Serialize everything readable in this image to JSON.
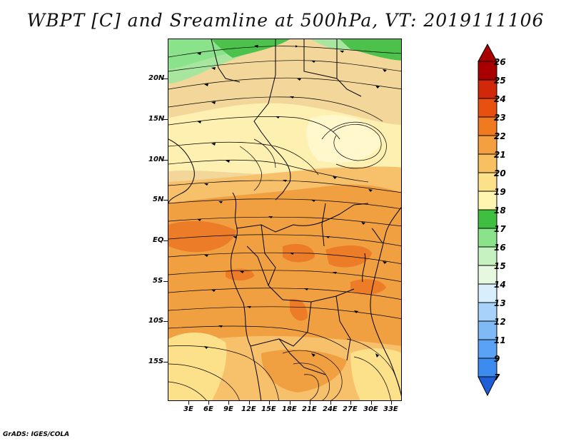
{
  "title": "WBPT [C] and Sreamline at 500hPa, VT: 2019111106",
  "footer": "GrADS: IGES/COLA",
  "map": {
    "region": "Central/Southern Africa",
    "y_labels": [
      "20N",
      "15N",
      "10N",
      "5N",
      "EQ",
      "5S",
      "10S",
      "15S"
    ],
    "x_labels": [
      "3E",
      "6E",
      "9E",
      "12E",
      "15E",
      "18E",
      "21E",
      "24E",
      "27E",
      "30E",
      "33E"
    ]
  },
  "colorbar": {
    "levels": [
      "7",
      "9",
      "11",
      "12",
      "13",
      "14",
      "15",
      "16",
      "17",
      "18",
      "19",
      "20",
      "21",
      "22",
      "23",
      "24",
      "25",
      "26"
    ],
    "colors": [
      "#1e5fd6",
      "#2a74e6",
      "#3c8cf0",
      "#5aa2f5",
      "#7fbaf7",
      "#a9d2fa",
      "#d8eefc",
      "#c5f2c0",
      "#8ae28a",
      "#3fbf3f",
      "#fff4b0",
      "#fde08a",
      "#f8c060",
      "#f5a040",
      "#f07a20",
      "#e85010",
      "#d02808",
      "#a80000"
    ]
  },
  "colors": {
    "tan": "#f2d69a",
    "pale_yellow": "#fdf0b0",
    "light_orange": "#f7c06a",
    "orange": "#f0a040",
    "deep_orange": "#ec7c28",
    "light_green": "#a8e6a0",
    "green": "#4cc24c"
  }
}
